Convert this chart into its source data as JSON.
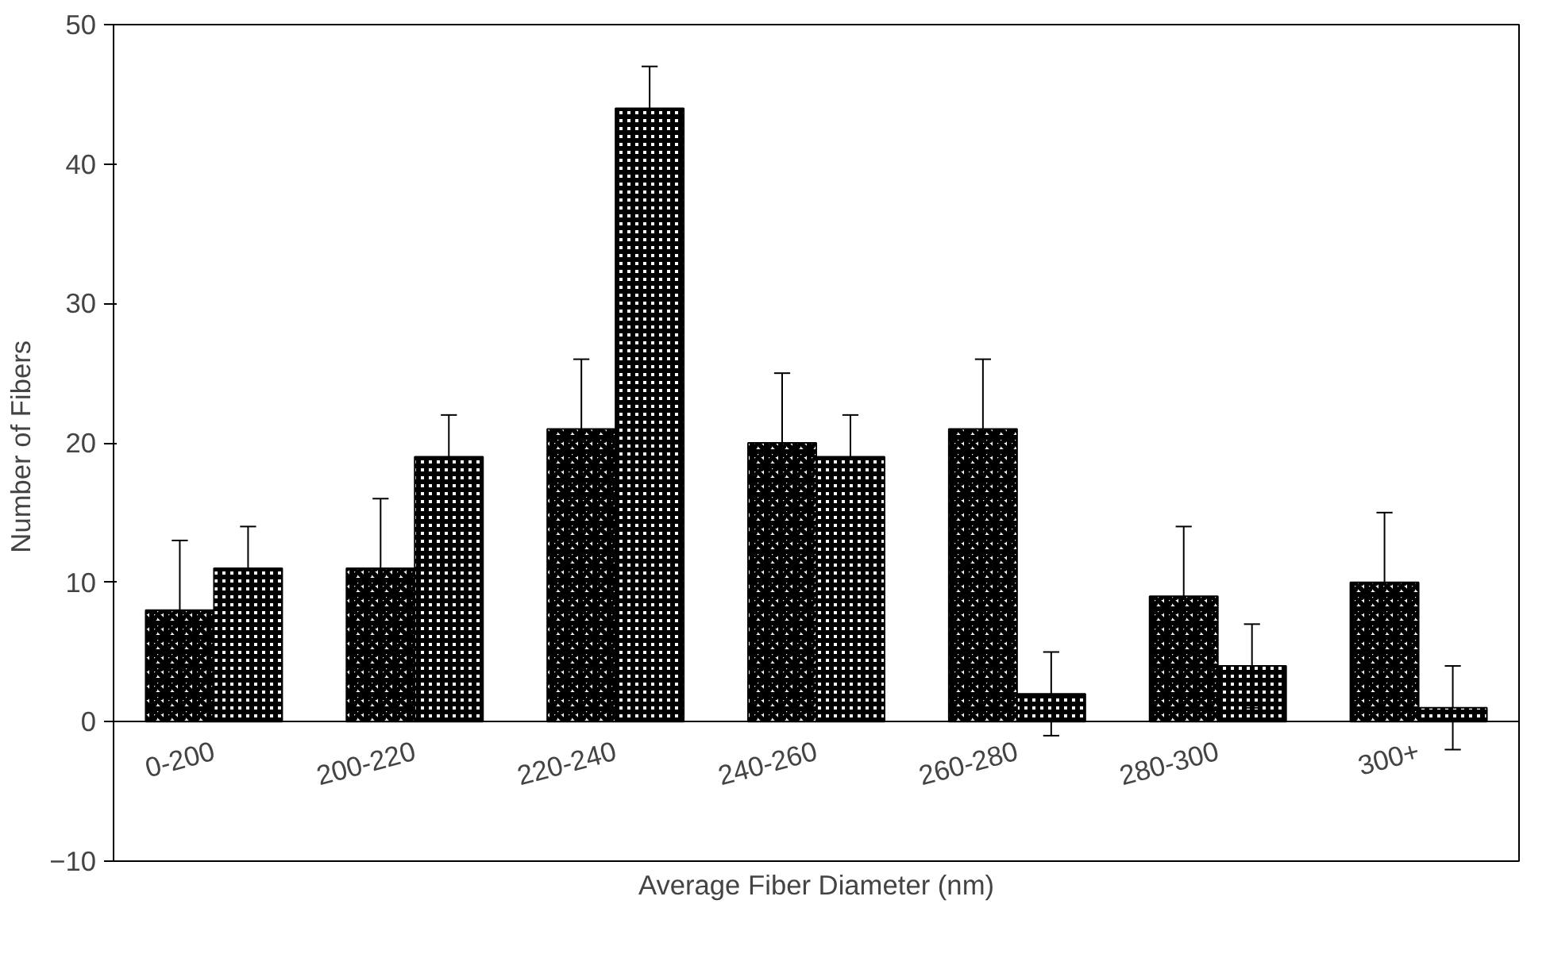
{
  "chart_data": {
    "type": "bar",
    "xlabel": "Average Fiber Diameter (nm)",
    "ylabel": "Number  of Fibers",
    "categories": [
      "0-200",
      "200-220",
      "220-240",
      "240-260",
      "260-280",
      "280-300",
      "300+"
    ],
    "series": [
      {
        "color": "#000000",
        "values": [
          8,
          11,
          21,
          20,
          21,
          9,
          10
        ],
        "errors": [
          5,
          5,
          5,
          5,
          5,
          5,
          5
        ]
      },
      {
        "color": "#000000",
        "values": [
          11,
          19,
          44,
          19,
          2,
          4,
          1
        ],
        "errors": [
          3,
          3,
          3,
          3,
          3,
          3,
          3
        ]
      }
    ],
    "ylim": [
      -10,
      50
    ],
    "yticks": [
      -10,
      0,
      10,
      20,
      30,
      40,
      50
    ],
    "grid": false
  }
}
